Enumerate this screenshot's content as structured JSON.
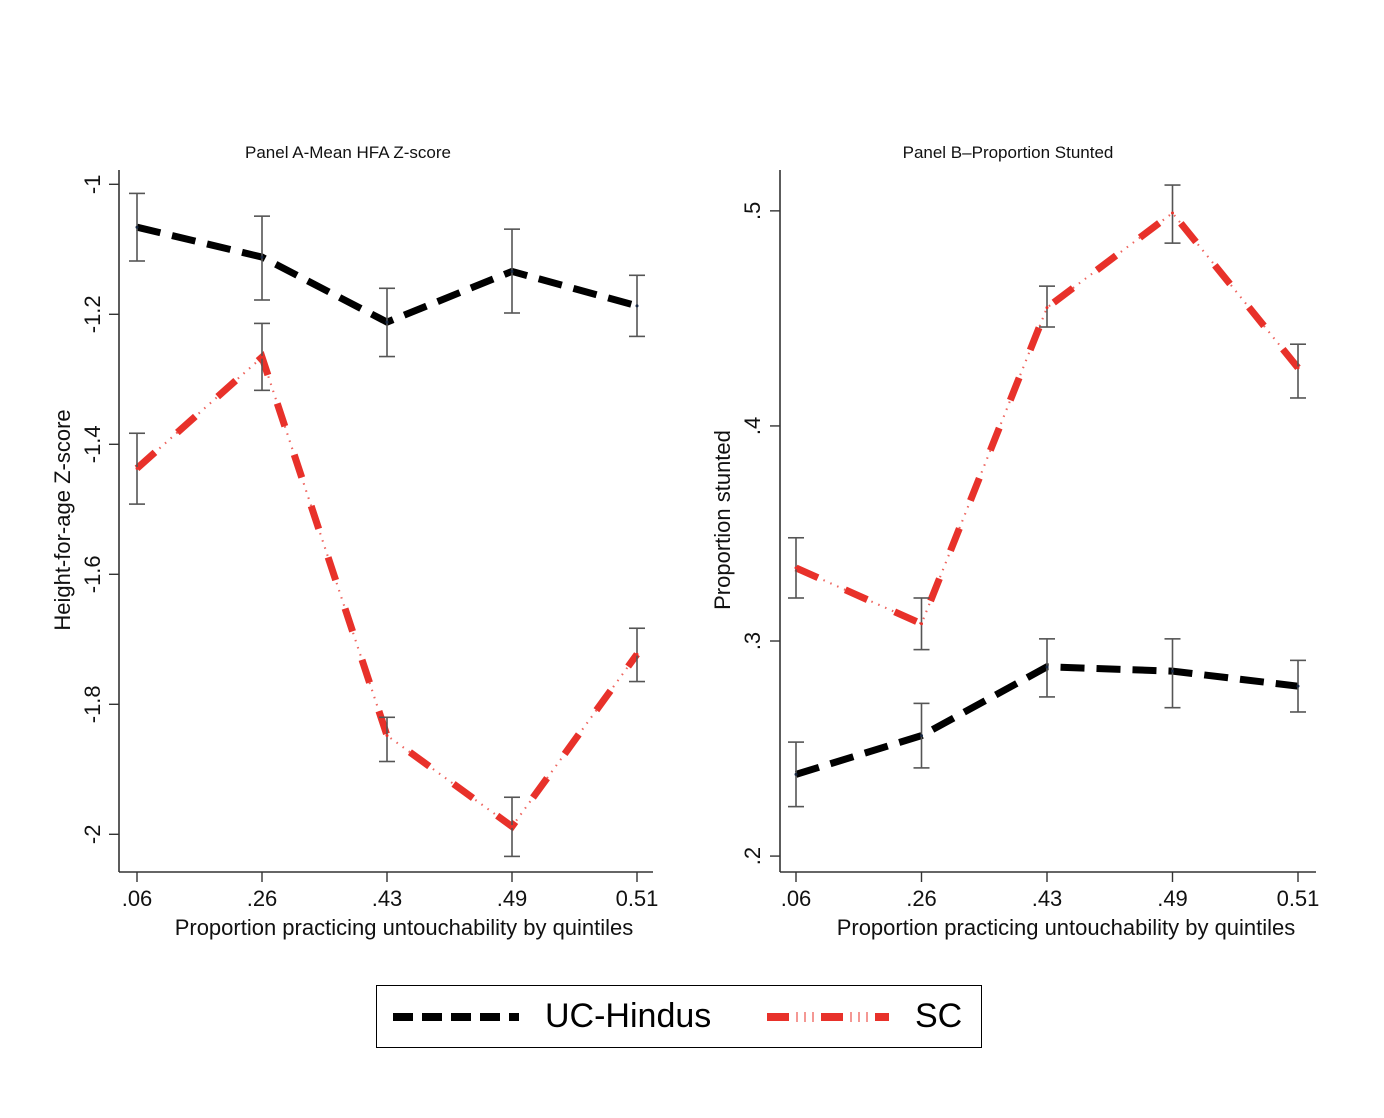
{
  "chart_data": [
    {
      "type": "line",
      "title": "Panel A-Mean HFA Z-score",
      "xlabel": "Proportion practicing untouchability by quintiles",
      "ylabel": "Height-for-age Z-score",
      "categories": [
        ".06",
        ".26",
        ".43",
        ".49",
        "0.51"
      ],
      "ylim": [
        -2.058,
        -0.978
      ],
      "yticks": [
        -1,
        -1.2,
        -1.4,
        -1.6,
        -1.8,
        -2
      ],
      "ytick_labels": [
        "-1",
        "-1.2",
        "-1.4",
        "-1.6",
        "-1.8",
        "-2"
      ],
      "grid": false,
      "series": [
        {
          "name": "UC-Hindus",
          "values": [
            -1.066,
            -1.112,
            -1.212,
            -1.134,
            -1.187
          ],
          "ci_low": [
            -1.118,
            -1.178,
            -1.265,
            -1.198,
            -1.234
          ],
          "ci_high": [
            -1.014,
            -1.049,
            -1.16,
            -1.069,
            -1.14
          ]
        },
        {
          "name": "SC",
          "values": [
            -1.437,
            -1.266,
            -1.848,
            -1.988,
            -1.723
          ],
          "ci_low": [
            -1.492,
            -1.317,
            -1.888,
            -2.034,
            -1.765
          ],
          "ci_high": [
            -1.383,
            -1.214,
            -1.82,
            -1.943,
            -1.683
          ]
        }
      ]
    },
    {
      "type": "line",
      "title": "Panel B–Proportion Stunted",
      "xlabel": "Proportion practicing untouchability by quintiles",
      "ylabel": "Proportion stunted",
      "categories": [
        ".06",
        ".26",
        ".43",
        ".49",
        "0.51"
      ],
      "ylim": [
        0.1926,
        0.519
      ],
      "yticks": [
        0.5,
        0.4,
        0.3,
        0.2
      ],
      "ytick_labels": [
        ".5",
        ".4",
        ".3",
        ".2"
      ],
      "grid": false,
      "series": [
        {
          "name": "UC-Hindus",
          "values": [
            0.238,
            0.256,
            0.288,
            0.286,
            0.279
          ],
          "ci_low": [
            0.223,
            0.241,
            0.274,
            0.269,
            0.267
          ],
          "ci_high": [
            0.253,
            0.271,
            0.301,
            0.301,
            0.291
          ]
        },
        {
          "name": "SC",
          "values": [
            0.334,
            0.308,
            0.455,
            0.499,
            0.427
          ],
          "ci_low": [
            0.32,
            0.296,
            0.446,
            0.485,
            0.413
          ],
          "ci_high": [
            0.348,
            0.32,
            0.465,
            0.512,
            0.438
          ]
        }
      ]
    }
  ],
  "legend": {
    "position": "bottom-center",
    "items": [
      {
        "label": "UC-Hindus",
        "color": "#000000",
        "style": "dash"
      },
      {
        "label": "SC",
        "color": "#e8312a",
        "style": "dash-dot-dot"
      }
    ]
  },
  "colors": {
    "uc": "#000000",
    "sc": "#e8312a",
    "ci": "#555555",
    "axis": "#333333"
  }
}
